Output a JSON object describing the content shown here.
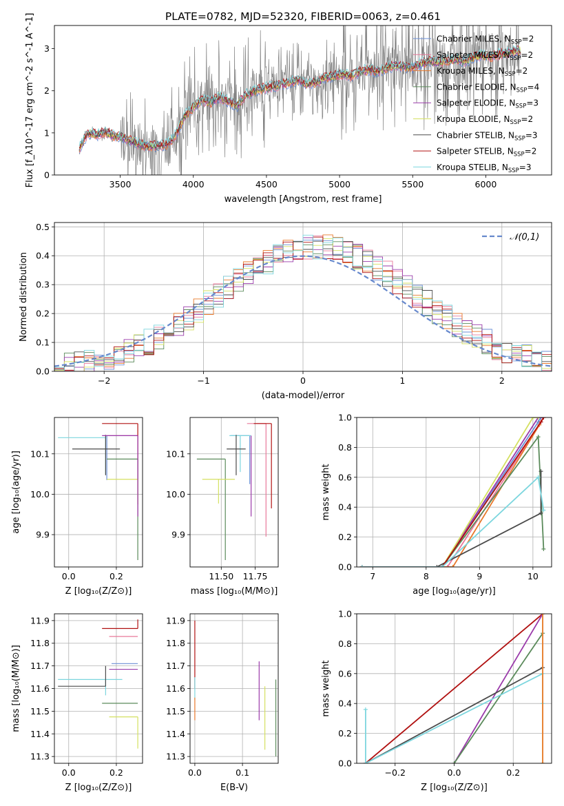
{
  "figure_title": "PLATE=0782, MJD=52320, FIBERID=0063, z=0.461",
  "models": [
    {
      "name": "Chabrier MILES",
      "nssp": "2",
      "color": "#6b8fd6"
    },
    {
      "name": "Salpeter MILES",
      "nssp": "2",
      "color": "#e8789a"
    },
    {
      "name": "Kroupa MILES",
      "nssp": "2",
      "color": "#e8782a"
    },
    {
      "name": "Chabrier ELODIE",
      "nssp": "4",
      "color": "#5a8a5a"
    },
    {
      "name": "Salpeter ELODIE",
      "nssp": "3",
      "color": "#9a3aaa"
    },
    {
      "name": "Kroupa ELODIE",
      "nssp": "2",
      "color": "#d4e060"
    },
    {
      "name": "Chabrier STELIB",
      "nssp": "3",
      "color": "#4a4a4a"
    },
    {
      "name": "Salpeter STELIB",
      "nssp": "2",
      "color": "#b01010"
    },
    {
      "name": "Kroupa STELIB",
      "nssp": "3",
      "color": "#7cd6de"
    }
  ],
  "chart_data": [
    {
      "id": "spectrum",
      "type": "line",
      "xlabel": "wavelength [Angstrom, rest frame]",
      "ylabel": "Flux [f_λ10^-17 erg cm^-2 s^-1 A^-1]",
      "xlim": [
        3050,
        6450
      ],
      "ylim": [
        0,
        3.55
      ],
      "xticks": [
        3500,
        4000,
        4500,
        5000,
        5500,
        6000
      ],
      "yticks": [
        0,
        1,
        2,
        3
      ],
      "model_x": [
        3220,
        3280,
        3340,
        3400,
        3460,
        3520,
        3580,
        3640,
        3700,
        3760,
        3820,
        3880,
        3940,
        4000,
        4060,
        4120,
        4180,
        4240,
        4300,
        4360,
        4420,
        4480,
        4540,
        4600,
        4660,
        4720,
        4780,
        4840,
        4900,
        4960,
        5020,
        5080,
        5140,
        5200,
        5260,
        5320,
        5380,
        5440,
        5500,
        5560,
        5620,
        5680,
        5740,
        5800,
        5860,
        5920,
        5980,
        6040,
        6100,
        6160,
        6220
      ],
      "model_y": [
        0.62,
        1.0,
        0.95,
        1.02,
        0.92,
        0.88,
        0.8,
        0.72,
        0.68,
        0.7,
        0.72,
        0.95,
        1.4,
        1.6,
        1.78,
        1.72,
        1.85,
        1.75,
        1.65,
        1.9,
        2.0,
        2.05,
        2.1,
        2.15,
        2.2,
        2.25,
        2.15,
        2.2,
        2.3,
        2.35,
        2.4,
        2.35,
        2.45,
        2.5,
        2.45,
        2.55,
        2.6,
        2.58,
        2.55,
        2.65,
        2.7,
        2.68,
        2.72,
        2.75,
        2.7,
        2.8,
        2.85,
        2.8,
        2.88,
        2.9,
        2.95
      ],
      "obs_noise_seed": 7
    },
    {
      "id": "residuals",
      "type": "step",
      "xlabel": "(data-model)/error",
      "ylabel": "Normed distribution",
      "xlim": [
        -2.5,
        2.5
      ],
      "ylim": [
        0,
        0.515
      ],
      "xticks": [
        -2,
        -1,
        0,
        1,
        2
      ],
      "yticks": [
        0.0,
        0.1,
        0.2,
        0.3,
        0.4,
        0.5
      ],
      "legend": "𝒩(0,1)",
      "bin_width": 0.1
    },
    {
      "id": "age_vs_Z",
      "type": "errorbar",
      "xlabel": "Z [log₁₀(Z/Z⊙)]",
      "ylabel": "age  [log₁₀(age/yr)]",
      "xlim": [
        -0.06,
        0.31
      ],
      "ylim": [
        9.82,
        10.19
      ],
      "xticks": [
        0.0,
        0.2
      ],
      "yticks": [
        9.9,
        10.0,
        10.1
      ],
      "points": [
        {
          "m": 0,
          "x": 0.16,
          "y": 10.145,
          "xl": 0.0,
          "xh": 0.0,
          "yl": 0.11,
          "yh": 0.0
        },
        {
          "m": 1,
          "x": 0.29,
          "y": 10.145,
          "xl": 0.14,
          "xh": 0.0,
          "yl": 0.2,
          "yh": 0.0
        },
        {
          "m": 7,
          "x": 0.29,
          "y": 10.175,
          "xl": 0.15,
          "xh": 0.0,
          "yl": 0.2,
          "yh": 0.0
        },
        {
          "m": 8,
          "x": 0.155,
          "y": 10.14,
          "xl": 0.2,
          "xh": 0.0,
          "yl": 0.09,
          "yh": 0.0
        },
        {
          "m": 6,
          "x": 0.155,
          "y": 10.112,
          "xl": 0.14,
          "xh": 0.06,
          "yl": 0.065,
          "yh": 0.035
        },
        {
          "m": 3,
          "x": 0.29,
          "y": 10.087,
          "xl": 0.13,
          "xh": 0.0,
          "yl": 0.25,
          "yh": 0.0
        },
        {
          "m": 5,
          "x": 0.29,
          "y": 10.037,
          "xl": 0.13,
          "xh": 0.0,
          "yl": 0.06,
          "yh": 0.0
        },
        {
          "m": 4,
          "x": 0.29,
          "y": 10.145,
          "xl": 0.15,
          "xh": 0.0,
          "yl": 0.2,
          "yh": 0.0
        }
      ]
    },
    {
      "id": "age_vs_mass",
      "type": "errorbar",
      "xlabel": "mass [log₁₀(M/M⊙)]",
      "ylabel": "",
      "xlim": [
        11.27,
        11.92
      ],
      "ylim": [
        9.82,
        10.19
      ],
      "xticks": [
        11.5,
        11.75
      ],
      "yticks": [
        9.9,
        10.0,
        10.1
      ],
      "points": [
        {
          "m": 0,
          "x": 11.71,
          "y": 10.145,
          "xl": 0.14,
          "xh": 0.0,
          "yl": 0.12,
          "yh": 0.0
        },
        {
          "m": 1,
          "x": 11.83,
          "y": 10.175,
          "xl": 0.14,
          "xh": 0.0,
          "yl": 0.28,
          "yh": 0.0
        },
        {
          "m": 7,
          "x": 11.87,
          "y": 10.175,
          "xl": 0.13,
          "xh": 0.0,
          "yl": 0.21,
          "yh": 0.0
        },
        {
          "m": 8,
          "x": 11.64,
          "y": 10.145,
          "xl": 0.08,
          "xh": 0.08,
          "yl": 0.09,
          "yh": 0.0
        },
        {
          "m": 6,
          "x": 11.61,
          "y": 10.112,
          "xl": 0.07,
          "xh": 0.07,
          "yl": 0.065,
          "yh": 0.035
        },
        {
          "m": 3,
          "x": 11.53,
          "y": 10.087,
          "xl": 0.21,
          "xh": 0.0,
          "yl": 0.25,
          "yh": 0.0
        },
        {
          "m": 5,
          "x": 11.48,
          "y": 10.037,
          "xl": 0.12,
          "xh": 0.12,
          "yl": 0.06,
          "yh": 0.0
        },
        {
          "m": 4,
          "x": 11.72,
          "y": 10.145,
          "xl": 0.0,
          "xh": 0.0,
          "yl": 0.2,
          "yh": 0.0
        }
      ]
    },
    {
      "id": "massweight_vs_age",
      "type": "line",
      "xlabel": "age  [log₁₀(age/yr)]",
      "ylabel": "mass weight",
      "xlim": [
        6.7,
        10.35
      ],
      "ylim": [
        0,
        1.0
      ],
      "xticks": [
        7,
        8,
        9,
        10
      ],
      "yticks": [
        0.0,
        0.2,
        0.4,
        0.6,
        0.8,
        1.0
      ],
      "series": [
        {
          "m": 0,
          "x": [
            6.8,
            8.3,
            10.1,
            10.15
          ],
          "y": [
            0.0,
            0.0,
            0.97,
            1.0
          ]
        },
        {
          "m": 1,
          "x": [
            6.8,
            8.4,
            10.15,
            10.2
          ],
          "y": [
            0.0,
            0.0,
            0.97,
            1.0
          ]
        },
        {
          "m": 2,
          "x": [
            6.8,
            8.5,
            10.12,
            10.2
          ],
          "y": [
            0.0,
            0.0,
            0.95,
            1.0
          ]
        },
        {
          "m": 3,
          "x": [
            6.8,
            8.3,
            10.1,
            10.2
          ],
          "y": [
            0.0,
            0.0,
            0.87,
            0.12
          ]
        },
        {
          "m": 4,
          "x": [
            6.8,
            8.3,
            10.1,
            10.2
          ],
          "y": [
            0.0,
            0.0,
            1.0,
            1.0
          ]
        },
        {
          "m": 5,
          "x": [
            6.8,
            8.3,
            10.0,
            10.1
          ],
          "y": [
            0.0,
            0.0,
            1.0,
            1.0
          ]
        },
        {
          "m": 6,
          "x": [
            6.8,
            8.2,
            10.15,
            10.15
          ],
          "y": [
            0.0,
            0.0,
            0.36,
            0.64
          ]
        },
        {
          "m": 7,
          "x": [
            6.8,
            8.3,
            10.15,
            10.2
          ],
          "y": [
            0.0,
            0.0,
            0.97,
            1.0
          ]
        },
        {
          "m": 8,
          "x": [
            6.8,
            8.3,
            10.1,
            10.2
          ],
          "y": [
            0.0,
            0.0,
            0.6,
            0.38
          ]
        }
      ]
    },
    {
      "id": "mass_vs_Z",
      "type": "errorbar",
      "xlabel": "Z [log₁₀(Z/Z⊙)]",
      "ylabel": "mass [log₁₀(M/M⊙)]",
      "xlim": [
        -0.06,
        0.31
      ],
      "ylim": [
        11.27,
        11.93
      ],
      "xticks": [
        0.0,
        0.2
      ],
      "yticks": [
        11.3,
        11.4,
        11.5,
        11.6,
        11.7,
        11.8,
        11.9
      ],
      "points": [
        {
          "m": 0,
          "x": 0.29,
          "y": 11.71,
          "xl": 0.11,
          "xh": 0.0,
          "yl": 0.0,
          "yh": 0.0
        },
        {
          "m": 1,
          "x": 0.29,
          "y": 11.83,
          "xl": 0.12,
          "xh": 0.0,
          "yl": 0.0,
          "yh": 0.0
        },
        {
          "m": 7,
          "x": 0.29,
          "y": 11.865,
          "xl": 0.15,
          "xh": 0.0,
          "yl": 0.0,
          "yh": 0.04
        },
        {
          "m": 8,
          "x": 0.155,
          "y": 11.64,
          "xl": 0.2,
          "xh": 0.07,
          "yl": 0.07,
          "yh": 0.0
        },
        {
          "m": 6,
          "x": 0.155,
          "y": 11.61,
          "xl": 0.2,
          "xh": 0.0,
          "yl": 0.0,
          "yh": 0.09
        },
        {
          "m": 3,
          "x": 0.29,
          "y": 11.535,
          "xl": 0.15,
          "xh": 0.0,
          "yl": 0.0,
          "yh": 0.0
        },
        {
          "m": 5,
          "x": 0.29,
          "y": 11.475,
          "xl": 0.12,
          "xh": 0.0,
          "yl": 0.14,
          "yh": 0.0
        },
        {
          "m": 4,
          "x": 0.29,
          "y": 11.685,
          "xl": 0.12,
          "xh": 0.0,
          "yl": 0.0,
          "yh": 0.0
        }
      ]
    },
    {
      "id": "mass_vs_EBV",
      "type": "errorbar",
      "xlabel": "E(B-V)",
      "ylabel": "",
      "xlim": [
        -0.01,
        0.175
      ],
      "ylim": [
        11.27,
        11.93
      ],
      "xticks": [
        0.0,
        0.1
      ],
      "yticks": [
        11.3,
        11.4,
        11.5,
        11.6,
        11.7,
        11.8,
        11.9
      ],
      "points": [
        {
          "m": 7,
          "x": 0.0,
          "y": 11.7,
          "xl": 0.0,
          "xh": 0.0,
          "yl": 0.1,
          "yh": 0.2
        },
        {
          "m": 8,
          "x": 0.0,
          "y": 11.6,
          "xl": 0.0,
          "xh": 0.0,
          "yl": 0.05,
          "yh": 0.05
        },
        {
          "m": 2,
          "x": 0.0,
          "y": 11.52,
          "xl": 0.0,
          "xh": 0.0,
          "yl": 0.06,
          "yh": 0.04
        },
        {
          "m": 4,
          "x": 0.135,
          "y": 11.59,
          "xl": 0.0,
          "xh": 0.0,
          "yl": 0.13,
          "yh": 0.13
        },
        {
          "m": 5,
          "x": 0.147,
          "y": 11.47,
          "xl": 0.0,
          "xh": 0.0,
          "yl": 0.14,
          "yh": 0.14
        },
        {
          "m": 3,
          "x": 0.17,
          "y": 11.47,
          "xl": 0.0,
          "xh": 0.0,
          "yl": 0.17,
          "yh": 0.17
        }
      ]
    },
    {
      "id": "massweight_vs_Z",
      "type": "line",
      "xlabel": "Z [log₁₀(Z/Z⊙)]",
      "ylabel": "mass weight",
      "xlim": [
        -0.33,
        0.33
      ],
      "ylim": [
        0,
        1.0
      ],
      "xticks": [
        -0.2,
        0.0,
        0.2
      ],
      "yticks": [
        0.0,
        0.2,
        0.4,
        0.6,
        0.8,
        1.0
      ],
      "series": [
        {
          "m": 7,
          "x": [
            -0.3,
            0.3
          ],
          "y": [
            0.0,
            1.0
          ]
        },
        {
          "m": 4,
          "x": [
            0.0,
            0.3
          ],
          "y": [
            0.0,
            1.0
          ]
        },
        {
          "m": 3,
          "x": [
            0.0,
            0.3
          ],
          "y": [
            0.0,
            0.87
          ]
        },
        {
          "m": 6,
          "x": [
            -0.3,
            0.3
          ],
          "y": [
            0.0,
            0.64
          ]
        },
        {
          "m": 8,
          "x": [
            -0.3,
            -0.3,
            0.3,
            0.3
          ],
          "y": [
            0.36,
            0.0,
            0.6,
            0.4
          ]
        },
        {
          "m": 5,
          "x": [
            0.3,
            0.3
          ],
          "y": [
            0.0,
            1.0
          ]
        },
        {
          "m": 2,
          "x": [
            0.3,
            0.3
          ],
          "y": [
            0.0,
            1.0
          ]
        }
      ]
    }
  ]
}
